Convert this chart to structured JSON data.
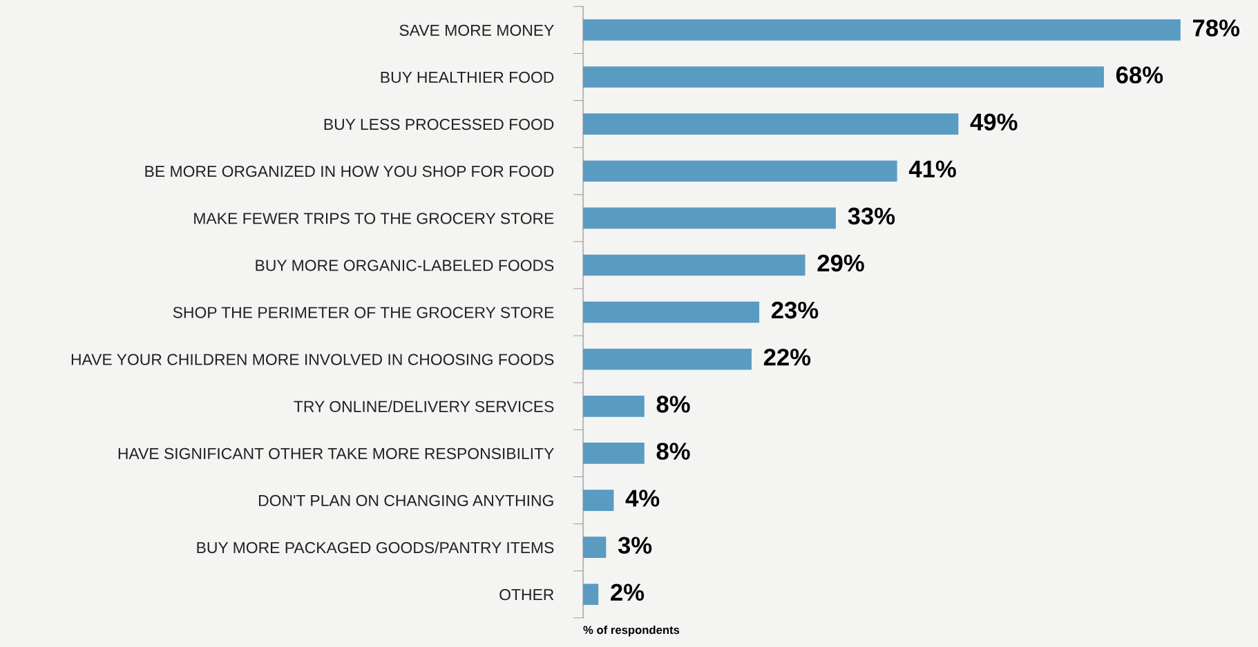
{
  "chart_data": {
    "type": "bar",
    "orientation": "horizontal",
    "xlabel": "% of respondents",
    "categories": [
      "SAVE MORE MONEY",
      "BUY HEALTHIER FOOD",
      "BUY LESS PROCESSED FOOD",
      "BE MORE ORGANIZED IN HOW YOU SHOP FOR FOOD",
      "MAKE FEWER TRIPS TO THE GROCERY STORE",
      "BUY MORE ORGANIC-LABELED FOODS",
      "SHOP THE PERIMETER OF THE GROCERY STORE",
      "HAVE YOUR CHILDREN MORE INVOLVED IN CHOOSING FOODS",
      "TRY ONLINE/DELIVERY SERVICES",
      "HAVE SIGNIFICANT OTHER TAKE MORE RESPONSIBILITY",
      "DON'T PLAN ON CHANGING ANYTHING",
      "BUY MORE PACKAGED GOODS/PANTRY ITEMS",
      "OTHER"
    ],
    "values": [
      78,
      68,
      49,
      41,
      33,
      29,
      23,
      22,
      8,
      8,
      4,
      3,
      2
    ],
    "value_labels": [
      "78%",
      "68%",
      "49%",
      "41%",
      "33%",
      "29%",
      "23%",
      "22%",
      "8%",
      "8%",
      "4%",
      "3%",
      "2%"
    ],
    "color": "#5a9bc1",
    "grid": false,
    "legend": false
  }
}
